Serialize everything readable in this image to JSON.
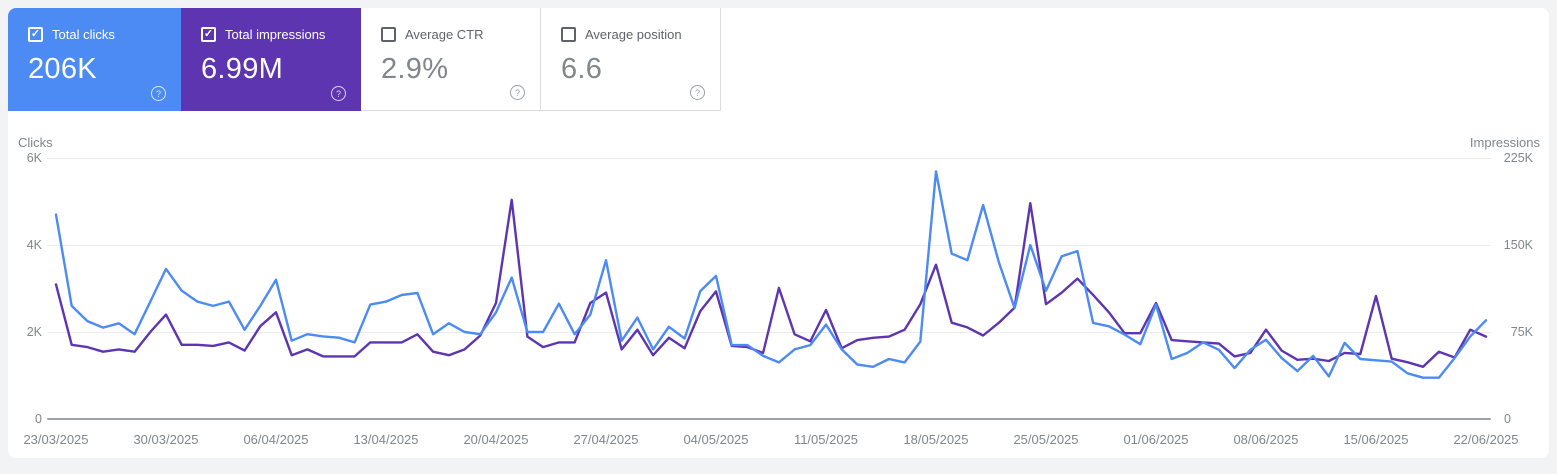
{
  "cards": [
    {
      "label": "Total clicks",
      "value": "206K",
      "checked": true,
      "color": "#4C8BF4"
    },
    {
      "label": "Total impressions",
      "value": "6.99M",
      "checked": true,
      "color": "#5E35B1"
    },
    {
      "label": "Average CTR",
      "value": "2.9%",
      "checked": false
    },
    {
      "label": "Average position",
      "value": "6.6",
      "checked": false
    }
  ],
  "chart_data": {
    "type": "line",
    "grid": "horizontal",
    "legend": "none",
    "x_tick_labels": [
      "23/03/2025",
      "30/03/2025",
      "06/04/2025",
      "13/04/2025",
      "20/04/2025",
      "27/04/2025",
      "04/05/2025",
      "11/05/2025",
      "18/05/2025",
      "25/05/2025",
      "01/06/2025",
      "08/06/2025",
      "15/06/2025",
      "22/06/2025"
    ],
    "left_axis": {
      "title": "Clicks",
      "tick_labels": [
        "0",
        "2K",
        "4K",
        "6K"
      ],
      "tick_values": [
        0,
        2000,
        4000,
        6000
      ],
      "max": 6000
    },
    "right_axis": {
      "title": "Impressions",
      "tick_labels": [
        "0",
        "75K",
        "150K",
        "225K"
      ],
      "tick_values": [
        0,
        75000,
        150000,
        225000
      ],
      "max": 225000
    },
    "series": [
      {
        "name": "Clicks",
        "axis": "left",
        "color": "#4C8BF4",
        "values": [
          4700,
          2600,
          2250,
          2100,
          2200,
          1950,
          2700,
          3450,
          2950,
          2700,
          2600,
          2700,
          2050,
          2600,
          3200,
          1800,
          1950,
          1900,
          1870,
          1760,
          2630,
          2700,
          2850,
          2900,
          1950,
          2200,
          2000,
          1950,
          2450,
          3250,
          2000,
          2000,
          2650,
          1950,
          2400,
          3650,
          1800,
          2330,
          1600,
          2120,
          1850,
          2940,
          3290,
          1700,
          1700,
          1450,
          1300,
          1600,
          1700,
          2170,
          1600,
          1250,
          1200,
          1380,
          1300,
          1780,
          5690,
          3800,
          3650,
          4920,
          3600,
          2550,
          4000,
          2950,
          3740,
          3860,
          2210,
          2130,
          1940,
          1720,
          2630,
          1380,
          1520,
          1760,
          1590,
          1170,
          1590,
          1820,
          1400,
          1100,
          1450,
          980,
          1750,
          1380,
          1350,
          1320,
          1050,
          950,
          950,
          1400,
          1900,
          2270
        ]
      },
      {
        "name": "Impressions",
        "axis": "right",
        "color": "#5E35B1",
        "values": [
          116000,
          64000,
          62000,
          58000,
          60000,
          58000,
          75000,
          90000,
          64000,
          64000,
          63000,
          66000,
          59000,
          80000,
          92000,
          55000,
          60000,
          54000,
          54000,
          54000,
          66000,
          66000,
          66000,
          73000,
          58000,
          55000,
          60000,
          72000,
          100000,
          189000,
          71000,
          62000,
          66000,
          66000,
          100000,
          109000,
          60000,
          77000,
          55000,
          70000,
          61000,
          93000,
          110000,
          63000,
          62000,
          57000,
          113000,
          73000,
          67000,
          94000,
          61000,
          68000,
          70000,
          71000,
          77000,
          99000,
          133000,
          83000,
          79000,
          72000,
          83000,
          96000,
          186000,
          99000,
          109000,
          121000,
          107000,
          92000,
          74000,
          74000,
          100000,
          68000,
          67000,
          66000,
          65000,
          54000,
          57000,
          77000,
          59000,
          51000,
          52000,
          50000,
          57000,
          56000,
          106000,
          52000,
          49000,
          45000,
          58000,
          53000,
          77000,
          71000
        ]
      }
    ]
  }
}
